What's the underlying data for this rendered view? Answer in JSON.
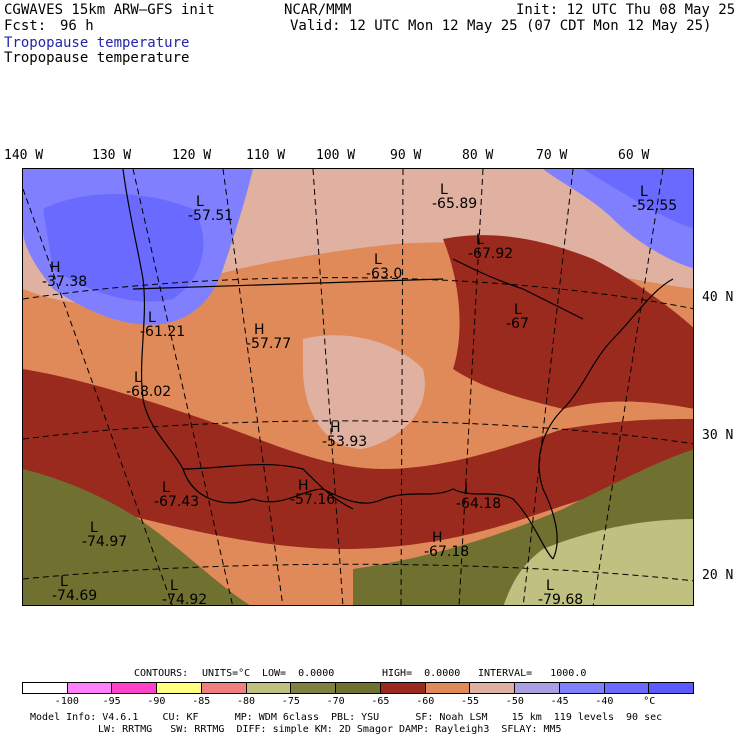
{
  "header": {
    "model": "CGWAVES 15km ARW—GFS init",
    "fcst_label": "Fcst:",
    "fcst_value": "96 h",
    "agency": "NCAR/MMM",
    "init": "Init: 12 UTC Thu 08 May 25",
    "valid": "Valid: 12 UTC Mon 12 May 25 (07 CDT Mon 12 May 25)",
    "field1": "Tropopause temperature",
    "field2": "Tropopause temperature"
  },
  "longitudes": [
    "140 W",
    "130 W",
    "120 W",
    "110 W",
    "100 W",
    "90 W",
    "80 W",
    "70 W",
    "60 W"
  ],
  "latitudes": [
    "40 N",
    "30 N",
    "20 N"
  ],
  "centers": [
    {
      "letter": "L",
      "value": "-57.51"
    },
    {
      "letter": "L",
      "value": "-65.89"
    },
    {
      "letter": "L",
      "value": "-52.55"
    },
    {
      "letter": "H",
      "value": "-37.38"
    },
    {
      "letter": "L",
      "value": "-67.92"
    },
    {
      "letter": "L",
      "value": "-63.0"
    },
    {
      "letter": "L",
      "value": "-61.21"
    },
    {
      "letter": "H",
      "value": "-57.77"
    },
    {
      "letter": "L",
      "value": "-67"
    },
    {
      "letter": "L",
      "value": "-68.02"
    },
    {
      "letter": "H",
      "value": "-53.93"
    },
    {
      "letter": "L",
      "value": "-67.43"
    },
    {
      "letter": "H",
      "value": "-57.16"
    },
    {
      "letter": "L",
      "value": "-64.18"
    },
    {
      "letter": "L",
      "value": "-74.97"
    },
    {
      "letter": "H",
      "value": "-67.18"
    },
    {
      "letter": "L",
      "value": "-74.69"
    },
    {
      "letter": "L",
      "value": "-74.92"
    },
    {
      "letter": "L",
      "value": "-79.68"
    }
  ],
  "contours": {
    "label": "CONTOURS:",
    "units": "UNITS=°C",
    "low": "LOW=  0.0000",
    "high": "HIGH=  0.0000",
    "interval": "INTERVAL=   1000.0"
  },
  "colorbar": {
    "colors": [
      "#ffffff",
      "#ff80ff",
      "#ff40c8",
      "#ffff80",
      "#f08080",
      "#c0c080",
      "#808040",
      "#707030",
      "#9a2a1e",
      "#e08a5a",
      "#e0b0a0",
      "#a8a0e0",
      "#8080ff",
      "#6a6aff",
      "#5a5aff"
    ],
    "labels": [
      "-100",
      "-95",
      "-90",
      "-85",
      "-80",
      "-75",
      "-70",
      "-65",
      "-60",
      "-55",
      "-50",
      "-45",
      "-40",
      "°C"
    ]
  },
  "footer": {
    "line1": "Model Info: V4.6.1    CU: KF      MP: WDM 6class  PBL: YSU      SF: Noah LSM    15 km  119 levels  90 sec",
    "line2": "LW: RRTMG   SW: RRTMG  DIFF: simple KM: 2D Smagor DAMP: Rayleigh3  SFLAY: MM5"
  }
}
